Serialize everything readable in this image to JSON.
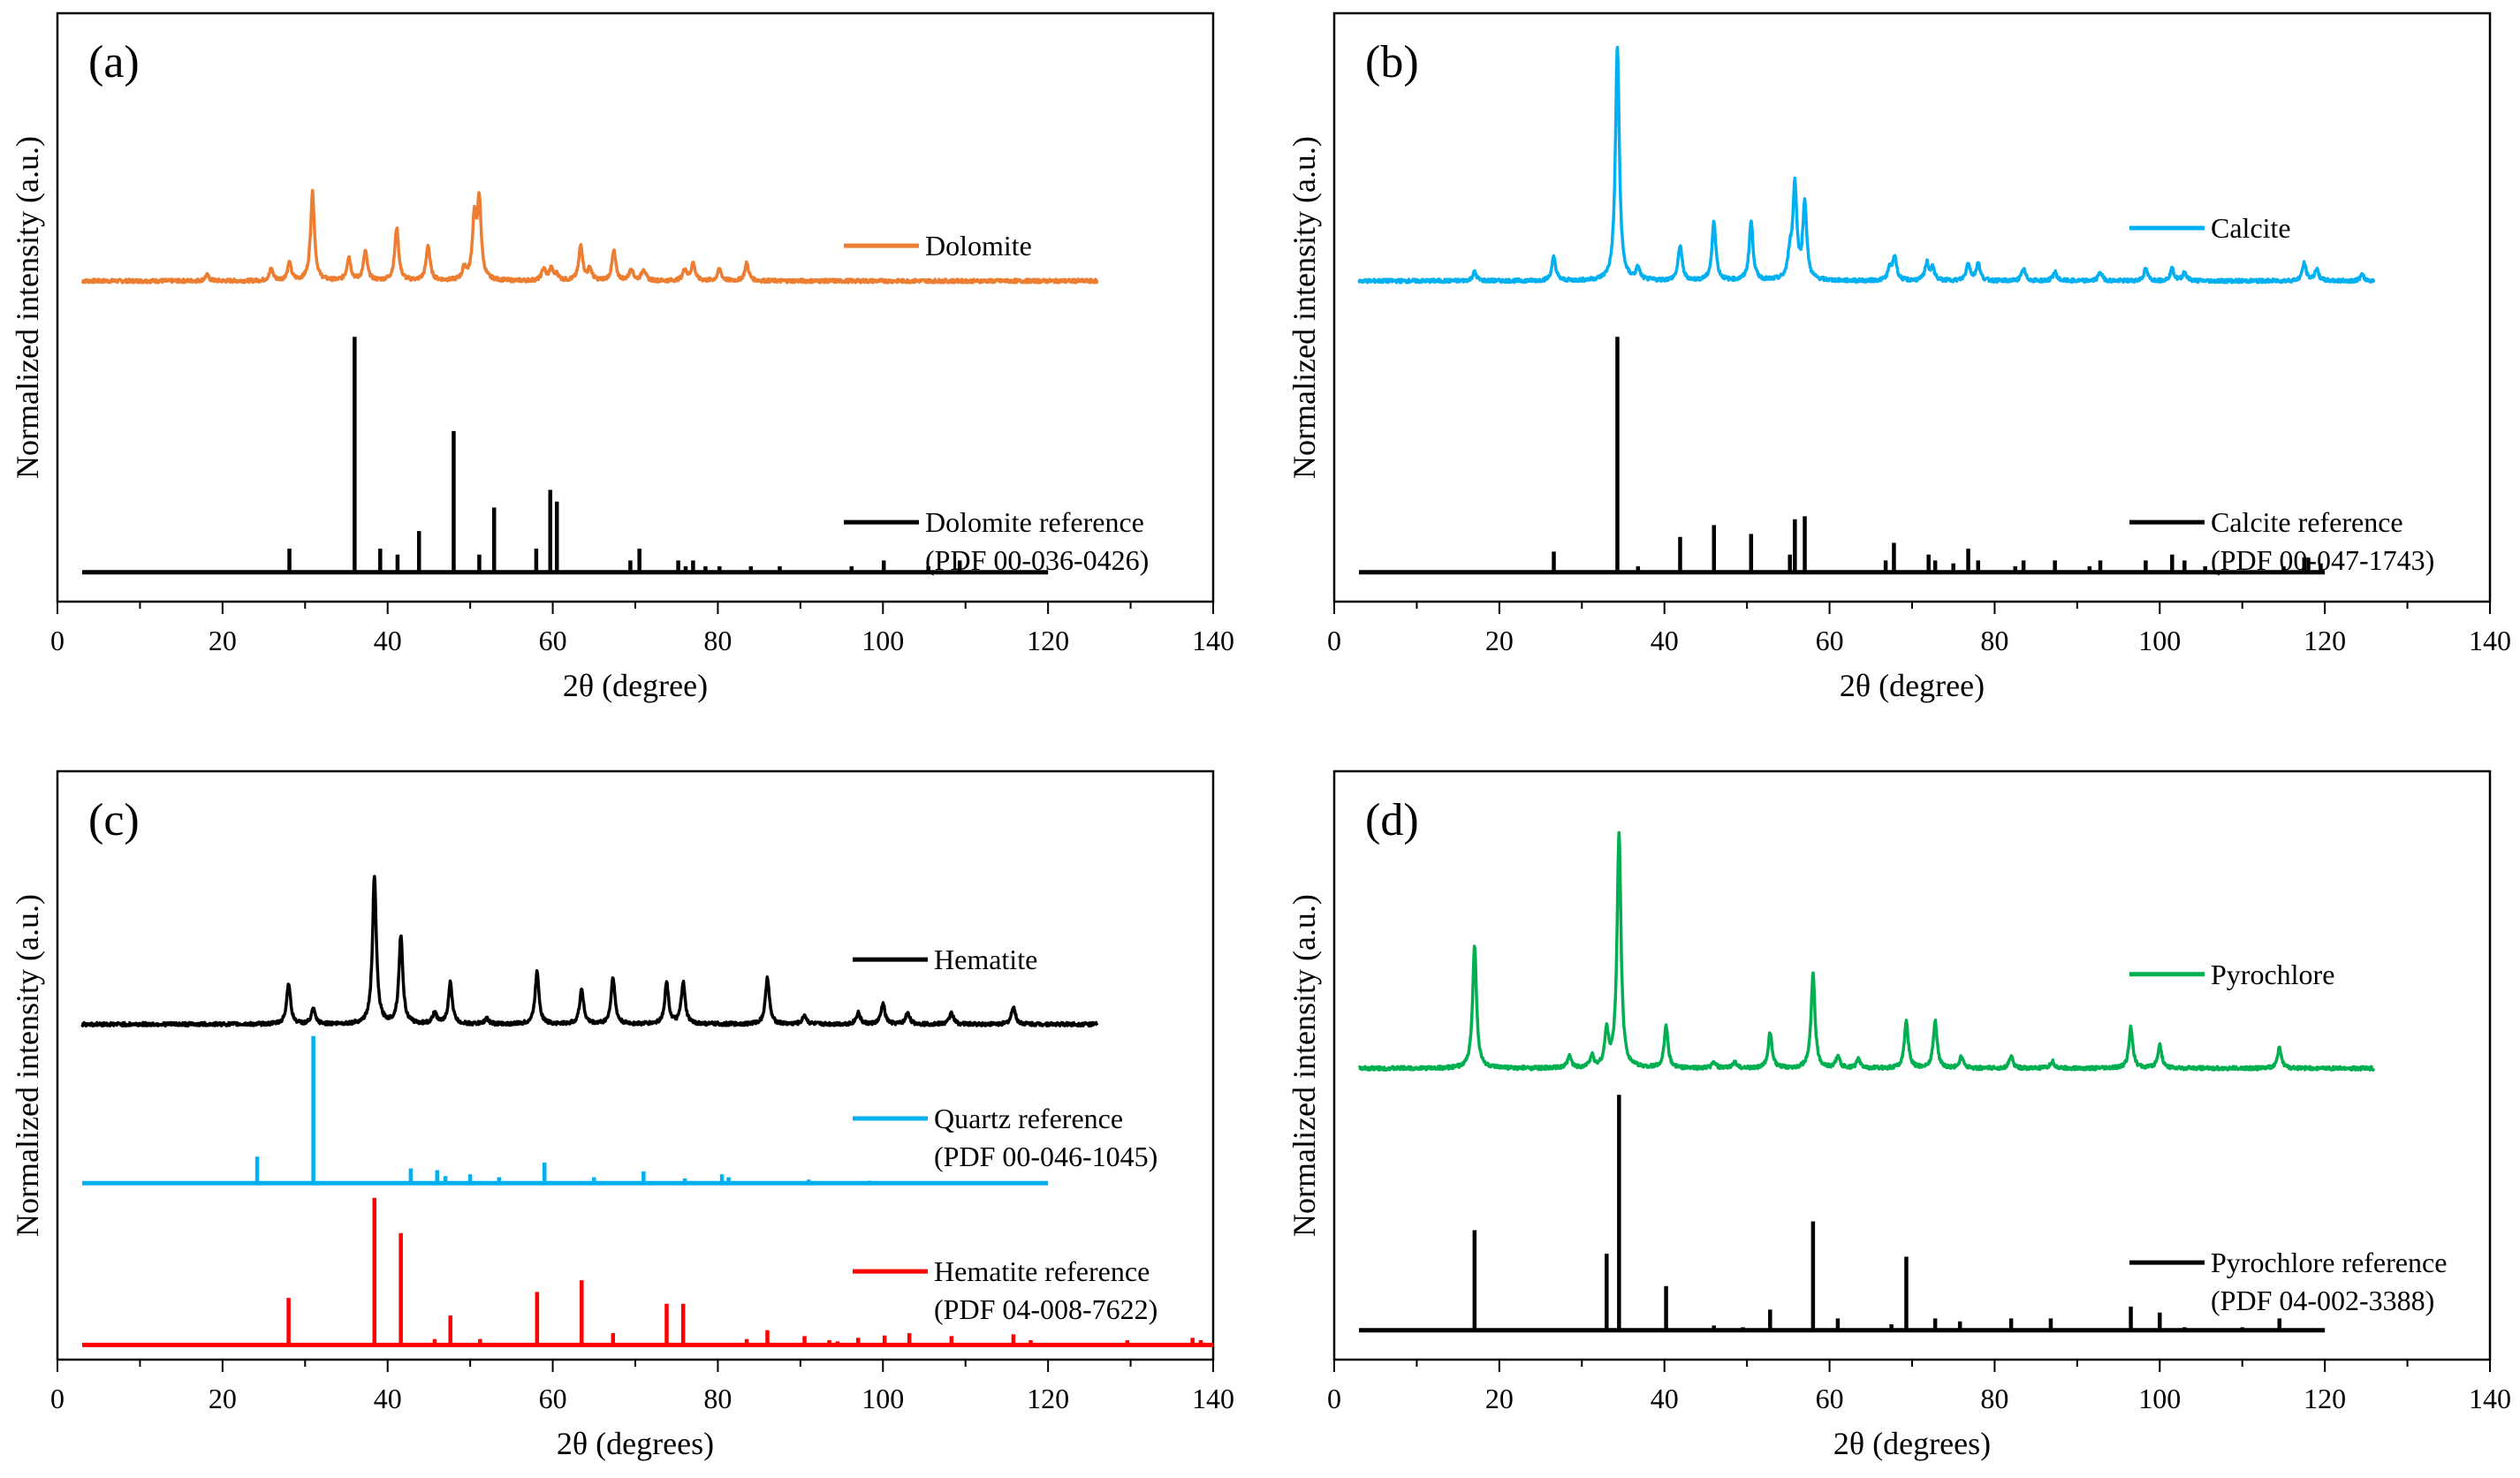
{
  "chart_data": [
    {
      "panel": "(a)",
      "type": "line",
      "xlabel": "2θ (degree)",
      "ylabel": "Normalized intensity (a.u.)",
      "xlim": [
        0,
        140
      ],
      "xticks": [
        0,
        20,
        40,
        60,
        80,
        100,
        120,
        140
      ],
      "series": [
        {
          "name": "Dolomite",
          "kind": "pattern",
          "color": "#ED7D31",
          "xrange": [
            3,
            126
          ],
          "level": 0.545,
          "peaks": [
            [
              18.1,
              0.01
            ],
            [
              25.9,
              0.02
            ],
            [
              28.1,
              0.03
            ],
            [
              30.9,
              0.15
            ],
            [
              35.3,
              0.04
            ],
            [
              37.3,
              0.05
            ],
            [
              41.1,
              0.09
            ],
            [
              44.9,
              0.06
            ],
            [
              49.3,
              0.02
            ],
            [
              50.5,
              0.1
            ],
            [
              51.1,
              0.13
            ],
            [
              58.9,
              0.02
            ],
            [
              59.8,
              0.02
            ],
            [
              60.5,
              0.01
            ],
            [
              63.4,
              0.06
            ],
            [
              64.5,
              0.02
            ],
            [
              67.4,
              0.05
            ],
            [
              69.5,
              0.02
            ],
            [
              71.0,
              0.02
            ],
            [
              76.0,
              0.02
            ],
            [
              77.0,
              0.03
            ],
            [
              80.2,
              0.02
            ],
            [
              83.5,
              0.03
            ]
          ]
        },
        {
          "name": "Dolomite reference",
          "sublabel": "(PDF 00-036-0426)",
          "kind": "sticks",
          "color": "#000000",
          "xrange": [
            3,
            120
          ],
          "level": 0.05,
          "peaks": [
            [
              28.1,
              0.04
            ],
            [
              36.0,
              0.4
            ],
            [
              39.1,
              0.04
            ],
            [
              41.2,
              0.03
            ],
            [
              43.8,
              0.07
            ],
            [
              48.0,
              0.24
            ],
            [
              51.1,
              0.03
            ],
            [
              52.9,
              0.11
            ],
            [
              58.0,
              0.04
            ],
            [
              59.7,
              0.14
            ],
            [
              60.5,
              0.12
            ],
            [
              69.4,
              0.02
            ],
            [
              70.5,
              0.04
            ],
            [
              75.2,
              0.02
            ],
            [
              76.1,
              0.01
            ],
            [
              77.0,
              0.02
            ],
            [
              78.5,
              0.01
            ],
            [
              80.2,
              0.01
            ],
            [
              84.0,
              0.01
            ],
            [
              87.5,
              0.01
            ],
            [
              96.2,
              0.01
            ],
            [
              100.1,
              0.02
            ],
            [
              105.5,
              0.01
            ],
            [
              109.3,
              0.02
            ]
          ]
        }
      ]
    },
    {
      "panel": "(b)",
      "type": "line",
      "xlabel": "2θ (degree)",
      "ylabel": "Normalized intensity (a.u.)",
      "xlim": [
        0,
        140
      ],
      "xticks": [
        0,
        20,
        40,
        60,
        80,
        100,
        120,
        140
      ],
      "series": [
        {
          "name": "Calcite",
          "kind": "pattern",
          "color": "#00B0F0",
          "xrange": [
            3,
            126
          ],
          "level": 0.545,
          "peaks": [
            [
              17.0,
              0.015
            ],
            [
              26.6,
              0.04
            ],
            [
              34.3,
              0.4
            ],
            [
              36.8,
              0.02
            ],
            [
              41.9,
              0.06
            ],
            [
              46.0,
              0.1
            ],
            [
              50.5,
              0.1
            ],
            [
              55.2,
              0.04
            ],
            [
              55.8,
              0.16
            ],
            [
              57.0,
              0.13
            ],
            [
              67.3,
              0.02
            ],
            [
              67.9,
              0.04
            ],
            [
              71.8,
              0.03
            ],
            [
              72.5,
              0.02
            ],
            [
              76.8,
              0.03
            ],
            [
              78.0,
              0.03
            ],
            [
              83.5,
              0.02
            ],
            [
              87.3,
              0.015
            ],
            [
              92.8,
              0.015
            ],
            [
              98.3,
              0.02
            ],
            [
              101.5,
              0.02
            ],
            [
              103.0,
              0.015
            ],
            [
              117.5,
              0.03
            ],
            [
              119.0,
              0.02
            ],
            [
              124.5,
              0.01
            ]
          ]
        },
        {
          "name": "Calcite reference",
          "sublabel": "(PDF 00-047-1743)",
          "kind": "sticks",
          "color": "#000000",
          "xrange": [
            3,
            120
          ],
          "level": 0.05,
          "peaks": [
            [
              26.6,
              0.035
            ],
            [
              34.3,
              0.4
            ],
            [
              36.8,
              0.01
            ],
            [
              41.9,
              0.06
            ],
            [
              46.0,
              0.08
            ],
            [
              50.5,
              0.065
            ],
            [
              55.2,
              0.03
            ],
            [
              55.8,
              0.09
            ],
            [
              57.0,
              0.095
            ],
            [
              66.8,
              0.02
            ],
            [
              67.8,
              0.05
            ],
            [
              72.0,
              0.03
            ],
            [
              72.8,
              0.02
            ],
            [
              75.0,
              0.015
            ],
            [
              76.8,
              0.04
            ],
            [
              78.0,
              0.02
            ],
            [
              82.5,
              0.01
            ],
            [
              83.5,
              0.02
            ],
            [
              87.3,
              0.02
            ],
            [
              91.5,
              0.01
            ],
            [
              92.8,
              0.02
            ],
            [
              98.3,
              0.02
            ],
            [
              101.5,
              0.03
            ],
            [
              103.0,
              0.02
            ],
            [
              105.5,
              0.01
            ],
            [
              115.0,
              0.01
            ],
            [
              117.5,
              0.025
            ],
            [
              118.0,
              0.025
            ],
            [
              119.5,
              0.015
            ]
          ]
        }
      ]
    },
    {
      "panel": "(c)",
      "type": "line",
      "xlabel": "2θ (degrees)",
      "ylabel": "Normalized intensity (a.u.)",
      "xlim": [
        0,
        140
      ],
      "xticks": [
        0,
        20,
        40,
        60,
        80,
        100,
        120,
        140
      ],
      "series": [
        {
          "name": "Hematite",
          "kind": "pattern",
          "color": "#000000",
          "xrange": [
            3,
            126
          ],
          "level": 0.57,
          "peaks": [
            [
              28.0,
              0.07
            ],
            [
              31.0,
              0.025
            ],
            [
              38.4,
              0.25
            ],
            [
              41.6,
              0.15
            ],
            [
              45.7,
              0.02
            ],
            [
              47.6,
              0.07
            ],
            [
              52.0,
              0.01
            ],
            [
              58.1,
              0.09
            ],
            [
              63.5,
              0.06
            ],
            [
              67.3,
              0.08
            ],
            [
              73.8,
              0.07
            ],
            [
              75.8,
              0.07
            ],
            [
              86.0,
              0.08
            ],
            [
              90.5,
              0.015
            ],
            [
              97.0,
              0.02
            ],
            [
              100.0,
              0.035
            ],
            [
              103.0,
              0.02
            ],
            [
              108.3,
              0.02
            ],
            [
              115.8,
              0.03
            ]
          ]
        },
        {
          "name": "Quartz reference",
          "sublabel": "(PDF 00-046-1045)",
          "kind": "sticks",
          "color": "#00B0F0",
          "xrange": [
            3,
            120
          ],
          "level": 0.3,
          "peaks": [
            [
              24.2,
              0.045
            ],
            [
              31.0,
              0.25
            ],
            [
              42.8,
              0.025
            ],
            [
              46.0,
              0.022
            ],
            [
              47.0,
              0.012
            ],
            [
              50.0,
              0.015
            ],
            [
              53.5,
              0.01
            ],
            [
              59.0,
              0.035
            ],
            [
              65.0,
              0.01
            ],
            [
              71.0,
              0.02
            ],
            [
              76.0,
              0.008
            ],
            [
              80.5,
              0.015
            ],
            [
              81.3,
              0.01
            ],
            [
              91.0,
              0.006
            ],
            [
              98.4,
              0.004
            ]
          ]
        },
        {
          "name": "Hematite reference",
          "sublabel": "(PDF 04-008-7622)",
          "kind": "sticks",
          "color": "#FF0000",
          "xrange": [
            3,
            140
          ],
          "level": 0.025,
          "peaks": [
            [
              28.0,
              0.08
            ],
            [
              38.4,
              0.25
            ],
            [
              41.6,
              0.19
            ],
            [
              45.7,
              0.01
            ],
            [
              47.6,
              0.05
            ],
            [
              51.2,
              0.01
            ],
            [
              58.1,
              0.09
            ],
            [
              63.5,
              0.11
            ],
            [
              67.3,
              0.02
            ],
            [
              73.8,
              0.07
            ],
            [
              75.8,
              0.07
            ],
            [
              83.5,
              0.01
            ],
            [
              86.0,
              0.025
            ],
            [
              90.5,
              0.015
            ],
            [
              93.5,
              0.008
            ],
            [
              94.5,
              0.006
            ],
            [
              97.0,
              0.012
            ],
            [
              100.2,
              0.016
            ],
            [
              103.2,
              0.02
            ],
            [
              108.3,
              0.015
            ],
            [
              115.8,
              0.018
            ],
            [
              117.9,
              0.008
            ],
            [
              129.6,
              0.008
            ],
            [
              137.5,
              0.012
            ],
            [
              138.5,
              0.008
            ]
          ]
        }
      ]
    },
    {
      "panel": "(d)",
      "type": "line",
      "xlabel": "2θ (degrees)",
      "ylabel": "Normalized intensity (a.u.)",
      "xlim": [
        0,
        140
      ],
      "xticks": [
        0,
        20,
        40,
        60,
        80,
        100,
        120,
        140
      ],
      "series": [
        {
          "name": "Pyrochlore",
          "kind": "pattern",
          "color": "#00B050",
          "xrange": [
            3,
            126
          ],
          "level": 0.495,
          "peaks": [
            [
              17.0,
              0.21
            ],
            [
              28.5,
              0.02
            ],
            [
              31.2,
              0.02
            ],
            [
              33.0,
              0.06
            ],
            [
              34.5,
              0.4
            ],
            [
              40.2,
              0.07
            ],
            [
              46.0,
              0.01
            ],
            [
              48.5,
              0.01
            ],
            [
              52.8,
              0.06
            ],
            [
              58.0,
              0.16
            ],
            [
              61.0,
              0.02
            ],
            [
              63.5,
              0.015
            ],
            [
              69.3,
              0.08
            ],
            [
              72.8,
              0.08
            ],
            [
              76.0,
              0.02
            ],
            [
              82.0,
              0.02
            ],
            [
              87.0,
              0.012
            ],
            [
              96.5,
              0.07
            ],
            [
              100.0,
              0.04
            ],
            [
              114.5,
              0.035
            ]
          ]
        },
        {
          "name": "Pyrochlore reference",
          "sublabel": "(PDF 04-002-3388)",
          "kind": "sticks",
          "color": "#000000",
          "xrange": [
            3,
            120
          ],
          "level": 0.05,
          "peaks": [
            [
              17.0,
              0.17
            ],
            [
              33.0,
              0.13
            ],
            [
              34.5,
              0.4
            ],
            [
              40.2,
              0.075
            ],
            [
              46.0,
              0.008
            ],
            [
              49.5,
              0.005
            ],
            [
              52.8,
              0.035
            ],
            [
              58.0,
              0.185
            ],
            [
              61.0,
              0.02
            ],
            [
              67.5,
              0.01
            ],
            [
              69.3,
              0.125
            ],
            [
              72.8,
              0.02
            ],
            [
              75.8,
              0.015
            ],
            [
              82.0,
              0.02
            ],
            [
              86.8,
              0.02
            ],
            [
              96.5,
              0.04
            ],
            [
              100.0,
              0.03
            ],
            [
              103.0,
              0.005
            ],
            [
              110.0,
              0.005
            ],
            [
              114.5,
              0.02
            ]
          ]
        }
      ]
    }
  ]
}
